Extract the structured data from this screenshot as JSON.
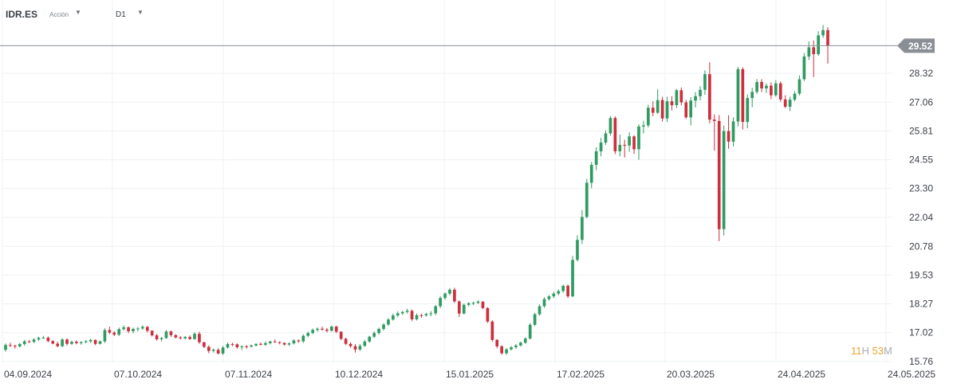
{
  "header": {
    "symbol": "IDR.ES",
    "symbol_type": "Acción",
    "timeframe": "D1",
    "dropdown_icon": "caret-down-icon"
  },
  "countdown": {
    "hours": "11",
    "hours_unit": "H",
    "minutes": "53",
    "minutes_unit": "M"
  },
  "colors": {
    "up": "#2f9b62",
    "down": "#cc2f3d",
    "grid": "#eef0f3",
    "price_line": "#8a8f96",
    "price_label_bg": "#8a8f96"
  },
  "chart_data": {
    "type": "candlestick",
    "current_price": 29.52,
    "current_price_label": "29.52",
    "y_ticks": [
      "28.32",
      "27.06",
      "25.81",
      "24.55",
      "23.30",
      "22.04",
      "20.78",
      "19.53",
      "18.27",
      "17.02",
      "15.76"
    ],
    "ylim": [
      15.5,
      30.3
    ],
    "x_ticks": [
      "04.09.2024",
      "07.10.2024",
      "07.11.2024",
      "10.12.2024",
      "15.01.2025",
      "17.02.2025",
      "20.03.2025",
      "24.04.2025",
      "24.05.2025"
    ],
    "grid": true,
    "candles": [
      [
        16.27,
        16.55,
        16.2,
        16.48
      ],
      [
        16.48,
        16.58,
        16.39,
        16.45
      ],
      [
        16.45,
        16.49,
        16.32,
        16.42
      ],
      [
        16.42,
        16.57,
        16.37,
        16.52
      ],
      [
        16.52,
        16.7,
        16.45,
        16.64
      ],
      [
        16.64,
        16.69,
        16.57,
        16.62
      ],
      [
        16.62,
        16.78,
        16.56,
        16.72
      ],
      [
        16.72,
        16.84,
        16.66,
        16.79
      ],
      [
        16.79,
        16.88,
        16.75,
        16.8
      ],
      [
        16.8,
        16.85,
        16.6,
        16.65
      ],
      [
        16.65,
        16.69,
        16.51,
        16.54
      ],
      [
        16.54,
        16.63,
        16.38,
        16.43
      ],
      [
        16.43,
        16.78,
        16.38,
        16.72
      ],
      [
        16.72,
        16.77,
        16.46,
        16.53
      ],
      [
        16.53,
        16.67,
        16.49,
        16.62
      ],
      [
        16.62,
        16.68,
        16.51,
        16.56
      ],
      [
        16.56,
        16.65,
        16.49,
        16.6
      ],
      [
        16.6,
        16.7,
        16.55,
        16.64
      ],
      [
        16.64,
        16.75,
        16.57,
        16.7
      ],
      [
        16.7,
        16.72,
        16.47,
        16.53
      ],
      [
        16.53,
        16.67,
        16.5,
        16.64
      ],
      [
        16.64,
        17.21,
        16.57,
        17.13
      ],
      [
        17.13,
        17.28,
        16.95,
        17.02
      ],
      [
        17.02,
        17.08,
        16.87,
        16.93
      ],
      [
        16.93,
        17.24,
        16.87,
        17.17
      ],
      [
        17.17,
        17.34,
        17.11,
        17.25
      ],
      [
        17.25,
        17.29,
        16.99,
        17.08
      ],
      [
        17.08,
        17.24,
        16.99,
        17.18
      ],
      [
        17.18,
        17.27,
        17.08,
        17.2
      ],
      [
        17.2,
        17.34,
        17.14,
        17.27
      ],
      [
        17.27,
        17.31,
        17.03,
        17.1
      ],
      [
        17.1,
        17.13,
        16.85,
        16.9
      ],
      [
        16.9,
        16.97,
        16.67,
        16.73
      ],
      [
        16.73,
        16.83,
        16.64,
        16.78
      ],
      [
        16.78,
        17.13,
        16.75,
        17.07
      ],
      [
        17.07,
        17.11,
        16.83,
        16.91
      ],
      [
        16.91,
        16.95,
        16.76,
        16.81
      ],
      [
        16.81,
        16.87,
        16.72,
        16.77
      ],
      [
        16.77,
        16.87,
        16.72,
        16.83
      ],
      [
        16.83,
        16.9,
        16.7,
        16.74
      ],
      [
        16.74,
        17.03,
        16.7,
        16.97
      ],
      [
        16.97,
        17.06,
        16.53,
        16.6
      ],
      [
        16.6,
        16.62,
        16.35,
        16.4
      ],
      [
        16.4,
        16.46,
        16.12,
        16.22
      ],
      [
        16.22,
        16.33,
        16.15,
        16.27
      ],
      [
        16.27,
        16.34,
        16.06,
        16.11
      ],
      [
        16.11,
        16.44,
        16.05,
        16.37
      ],
      [
        16.37,
        16.59,
        16.32,
        16.52
      ],
      [
        16.52,
        16.58,
        16.43,
        16.51
      ],
      [
        16.51,
        16.55,
        16.32,
        16.38
      ],
      [
        16.38,
        16.47,
        16.26,
        16.42
      ],
      [
        16.42,
        16.48,
        16.32,
        16.41
      ],
      [
        16.41,
        16.5,
        16.37,
        16.46
      ],
      [
        16.46,
        16.55,
        16.41,
        16.53
      ],
      [
        16.53,
        16.59,
        16.47,
        16.49
      ],
      [
        16.49,
        16.64,
        16.44,
        16.56
      ],
      [
        16.56,
        16.67,
        16.5,
        16.63
      ],
      [
        16.63,
        16.72,
        16.58,
        16.6
      ],
      [
        16.6,
        16.64,
        16.51,
        16.57
      ],
      [
        16.57,
        16.6,
        16.45,
        16.5
      ],
      [
        16.5,
        16.6,
        16.44,
        16.55
      ],
      [
        16.55,
        16.73,
        16.5,
        16.68
      ],
      [
        16.68,
        16.72,
        16.58,
        16.64
      ],
      [
        16.64,
        16.95,
        16.57,
        16.88
      ],
      [
        16.88,
        17.06,
        16.82,
        17.0
      ],
      [
        17.0,
        17.2,
        16.95,
        17.14
      ],
      [
        17.14,
        17.24,
        17.06,
        17.19
      ],
      [
        17.19,
        17.28,
        17.11,
        17.15
      ],
      [
        17.15,
        17.22,
        17.03,
        17.1
      ],
      [
        17.1,
        17.33,
        17.07,
        17.28
      ],
      [
        17.28,
        17.32,
        16.99,
        17.06
      ],
      [
        17.06,
        17.08,
        16.69,
        16.75
      ],
      [
        16.75,
        16.8,
        16.47,
        16.53
      ],
      [
        16.53,
        16.6,
        16.36,
        16.43
      ],
      [
        16.43,
        16.52,
        16.15,
        16.28
      ],
      [
        16.28,
        16.52,
        16.23,
        16.44
      ],
      [
        16.44,
        16.7,
        16.4,
        16.63
      ],
      [
        16.63,
        16.88,
        16.58,
        16.84
      ],
      [
        16.84,
        17.07,
        16.78,
        17.0
      ],
      [
        17.0,
        17.24,
        16.93,
        17.18
      ],
      [
        17.18,
        17.42,
        17.11,
        17.37
      ],
      [
        17.37,
        17.65,
        17.31,
        17.59
      ],
      [
        17.59,
        17.85,
        17.54,
        17.77
      ],
      [
        17.77,
        17.95,
        17.69,
        17.86
      ],
      [
        17.86,
        17.97,
        17.79,
        17.92
      ],
      [
        17.92,
        18.06,
        17.85,
        17.97
      ],
      [
        17.97,
        18.03,
        17.52,
        17.6
      ],
      [
        17.6,
        17.85,
        17.55,
        17.78
      ],
      [
        17.78,
        17.84,
        17.66,
        17.77
      ],
      [
        17.77,
        17.88,
        17.71,
        17.83
      ],
      [
        17.83,
        17.96,
        17.73,
        17.86
      ],
      [
        17.86,
        18.22,
        17.78,
        18.17
      ],
      [
        18.17,
        18.61,
        18.08,
        18.53
      ],
      [
        18.53,
        18.77,
        18.45,
        18.72
      ],
      [
        18.72,
        18.96,
        18.64,
        18.89
      ],
      [
        18.89,
        18.97,
        18.31,
        18.38
      ],
      [
        18.38,
        18.42,
        17.7,
        17.85
      ],
      [
        17.85,
        18.29,
        17.81,
        18.23
      ],
      [
        18.23,
        18.35,
        18.16,
        18.3
      ],
      [
        18.3,
        18.37,
        18.22,
        18.32
      ],
      [
        18.32,
        18.43,
        18.26,
        18.37
      ],
      [
        18.37,
        18.39,
        18.04,
        18.09
      ],
      [
        18.09,
        18.13,
        17.44,
        17.5
      ],
      [
        17.5,
        17.56,
        16.63,
        16.7
      ],
      [
        16.7,
        16.74,
        16.34,
        16.42
      ],
      [
        16.42,
        16.48,
        16.06,
        16.12
      ],
      [
        16.12,
        16.35,
        16.05,
        16.29
      ],
      [
        16.29,
        16.44,
        16.24,
        16.38
      ],
      [
        16.38,
        16.52,
        16.31,
        16.46
      ],
      [
        16.46,
        16.63,
        16.41,
        16.58
      ],
      [
        16.58,
        16.82,
        16.53,
        16.76
      ],
      [
        16.76,
        17.43,
        16.72,
        17.36
      ],
      [
        17.36,
        17.88,
        17.3,
        17.82
      ],
      [
        17.82,
        18.25,
        17.75,
        18.17
      ],
      [
        18.17,
        18.56,
        18.1,
        18.48
      ],
      [
        18.48,
        18.66,
        18.41,
        18.6
      ],
      [
        18.6,
        18.8,
        18.52,
        18.72
      ],
      [
        18.72,
        18.9,
        18.64,
        18.83
      ],
      [
        18.83,
        19.11,
        18.75,
        19.06
      ],
      [
        19.06,
        19.12,
        18.53,
        18.6
      ],
      [
        18.6,
        20.36,
        18.56,
        20.19
      ],
      [
        20.19,
        21.26,
        20.12,
        21.06
      ],
      [
        21.06,
        22.36,
        20.88,
        22.06
      ],
      [
        22.06,
        23.72,
        22.0,
        23.55
      ],
      [
        23.55,
        24.46,
        23.31,
        24.33
      ],
      [
        24.33,
        25.1,
        24.1,
        24.92
      ],
      [
        24.92,
        25.5,
        24.7,
        25.3
      ],
      [
        25.3,
        25.83,
        25.2,
        25.7
      ],
      [
        25.7,
        26.45,
        25.6,
        26.37
      ],
      [
        26.37,
        26.44,
        24.8,
        24.92
      ],
      [
        24.92,
        25.65,
        24.7,
        25.2
      ],
      [
        25.2,
        25.42,
        24.65,
        25.17
      ],
      [
        25.17,
        25.75,
        24.9,
        25.57
      ],
      [
        25.57,
        25.62,
        24.8,
        25.01
      ],
      [
        25.01,
        26.1,
        24.55,
        26.0
      ],
      [
        26.0,
        26.25,
        25.7,
        26.05
      ],
      [
        26.05,
        26.95,
        25.96,
        26.82
      ],
      [
        26.82,
        27.1,
        26.45,
        26.6
      ],
      [
        26.6,
        27.62,
        26.55,
        27.15
      ],
      [
        27.15,
        27.3,
        26.22,
        26.35
      ],
      [
        26.35,
        27.3,
        26.2,
        27.1
      ],
      [
        27.1,
        27.32,
        26.7,
        26.93
      ],
      [
        26.93,
        27.63,
        26.8,
        27.58
      ],
      [
        27.58,
        27.7,
        26.92,
        27.05
      ],
      [
        27.05,
        27.16,
        26.33,
        26.4
      ],
      [
        26.4,
        27.28,
        26.05,
        27.13
      ],
      [
        27.13,
        27.5,
        26.83,
        27.32
      ],
      [
        27.32,
        27.76,
        27.14,
        27.6
      ],
      [
        27.6,
        28.45,
        27.38,
        28.28
      ],
      [
        28.28,
        28.8,
        26.14,
        26.3
      ],
      [
        26.3,
        26.53,
        24.95,
        26.24
      ],
      [
        26.24,
        26.5,
        21.0,
        21.53
      ],
      [
        21.53,
        26.05,
        21.25,
        25.8
      ],
      [
        25.8,
        26.49,
        25.03,
        25.34
      ],
      [
        25.34,
        26.4,
        25.13,
        26.22
      ],
      [
        26.22,
        28.6,
        26.0,
        28.5
      ],
      [
        28.5,
        28.58,
        25.87,
        26.2
      ],
      [
        26.2,
        27.4,
        25.92,
        27.24
      ],
      [
        27.24,
        27.69,
        26.84,
        27.51
      ],
      [
        27.51,
        28.07,
        27.42,
        27.94
      ],
      [
        27.94,
        28.06,
        27.5,
        27.66
      ],
      [
        27.66,
        27.88,
        27.46,
        27.78
      ],
      [
        27.78,
        27.93,
        27.2,
        27.36
      ],
      [
        27.36,
        28.02,
        27.3,
        27.88
      ],
      [
        27.88,
        27.96,
        27.08,
        27.18
      ],
      [
        27.18,
        27.36,
        26.8,
        26.86
      ],
      [
        26.86,
        27.3,
        26.67,
        27.17
      ],
      [
        27.17,
        27.54,
        27.1,
        27.43
      ],
      [
        27.43,
        28.23,
        27.36,
        28.06
      ],
      [
        28.06,
        29.2,
        27.98,
        29.05
      ],
      [
        29.05,
        29.71,
        28.9,
        29.45
      ],
      [
        29.45,
        29.75,
        28.15,
        29.15
      ],
      [
        29.15,
        30.15,
        29.08,
        29.97
      ],
      [
        29.97,
        30.42,
        29.86,
        30.2
      ],
      [
        30.2,
        30.33,
        28.74,
        29.52
      ]
    ]
  }
}
